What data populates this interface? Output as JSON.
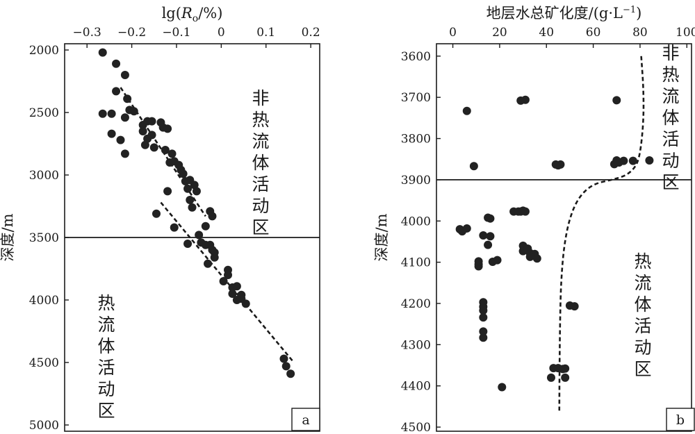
{
  "chart_data": [
    {
      "type": "scatter",
      "panel_label": "a",
      "xlabel_parts": {
        "pre": "lg(",
        "var": "R",
        "sub": "o",
        "post": "/%)"
      },
      "ylabel": "深度/m",
      "xlim": [
        -0.35,
        0.22
      ],
      "ylim": [
        5050,
        1950
      ],
      "x_axis_position": "top",
      "y_inverted": true,
      "x_ticks": [
        -0.3,
        -0.2,
        -0.1,
        0,
        0.1,
        0.2
      ],
      "x_tick_labels": [
        "−0.3",
        "−0.2",
        "−0.1",
        "0",
        "0.1",
        "0.2"
      ],
      "y_ticks": [
        2000,
        2500,
        3000,
        3500,
        4000,
        4500,
        5000
      ],
      "y_tick_labels": [
        "2000",
        "2500",
        "3000",
        "3500",
        "4000",
        "4500",
        "5000"
      ],
      "grid": false,
      "boundary_depth": 3500,
      "zone_upper_label": "非热流体活动区",
      "zone_lower_label": "热流体活动区",
      "trend_lines": [
        {
          "style": "dashed",
          "points": [
            [
              -0.225,
              2300
            ],
            [
              -0.035,
              3330
            ]
          ]
        },
        {
          "style": "dashed",
          "points": [
            [
              -0.135,
              3220
            ],
            [
              0.16,
              4490
            ]
          ]
        }
      ],
      "points": [
        [
          -0.265,
          2020
        ],
        [
          -0.235,
          2110
        ],
        [
          -0.215,
          2200
        ],
        [
          -0.235,
          2330
        ],
        [
          -0.21,
          2390
        ],
        [
          -0.265,
          2510
        ],
        [
          -0.245,
          2510
        ],
        [
          -0.205,
          2480
        ],
        [
          -0.195,
          2490
        ],
        [
          -0.215,
          2540
        ],
        [
          -0.245,
          2670
        ],
        [
          -0.225,
          2720
        ],
        [
          -0.215,
          2830
        ],
        [
          -0.175,
          2600
        ],
        [
          -0.165,
          2570
        ],
        [
          -0.155,
          2570
        ],
        [
          -0.175,
          2650
        ],
        [
          -0.155,
          2680
        ],
        [
          -0.135,
          2580
        ],
        [
          -0.13,
          2620
        ],
        [
          -0.12,
          2630
        ],
        [
          -0.165,
          2710
        ],
        [
          -0.17,
          2760
        ],
        [
          -0.15,
          2780
        ],
        [
          -0.125,
          2800
        ],
        [
          -0.11,
          2830
        ],
        [
          -0.115,
          2900
        ],
        [
          -0.105,
          2890
        ],
        [
          -0.095,
          2920
        ],
        [
          -0.09,
          2960
        ],
        [
          -0.085,
          2990
        ],
        [
          -0.08,
          3050
        ],
        [
          -0.07,
          3040
        ],
        [
          -0.06,
          3080
        ],
        [
          -0.055,
          3130
        ],
        [
          -0.075,
          3110
        ],
        [
          -0.07,
          3200
        ],
        [
          -0.065,
          3260
        ],
        [
          -0.12,
          3130
        ],
        [
          -0.145,
          3310
        ],
        [
          -0.025,
          3290
        ],
        [
          -0.02,
          3330
        ],
        [
          -0.035,
          3410
        ],
        [
          -0.05,
          3480
        ],
        [
          -0.045,
          3540
        ],
        [
          -0.035,
          3560
        ],
        [
          -0.025,
          3560
        ],
        [
          -0.02,
          3600
        ],
        [
          -0.015,
          3620
        ],
        [
          -0.015,
          3660
        ],
        [
          -0.105,
          3420
        ],
        [
          -0.075,
          3550
        ],
        [
          -0.03,
          3710
        ],
        [
          0.015,
          3760
        ],
        [
          0.015,
          3800
        ],
        [
          0.005,
          3850
        ],
        [
          0.025,
          3900
        ],
        [
          0.035,
          3890
        ],
        [
          0.025,
          3950
        ],
        [
          0.045,
          3960
        ],
        [
          0.045,
          3990
        ],
        [
          0.035,
          4000
        ],
        [
          0.055,
          4030
        ],
        [
          0.14,
          4470
        ],
        [
          0.145,
          4530
        ],
        [
          0.155,
          4590
        ]
      ]
    },
    {
      "type": "scatter",
      "panel_label": "b",
      "xlabel": "地层水总矿化度/(g·L",
      "xlabel_sup": "−1",
      "xlabel_close": ")",
      "ylabel": "深度/m",
      "xlim": [
        -7,
        102
      ],
      "ylim": [
        4510,
        3570
      ],
      "x_axis_position": "top",
      "y_inverted": true,
      "x_ticks": [
        0,
        20,
        40,
        60,
        80,
        100
      ],
      "x_tick_labels": [
        "0",
        "20",
        "40",
        "60",
        "80",
        "100"
      ],
      "y_ticks": [
        3600,
        3700,
        3800,
        3900,
        4000,
        4100,
        4200,
        4300,
        4400,
        4500
      ],
      "y_tick_labels": [
        "3600",
        "3700",
        "3800",
        "3900",
        "4000",
        "4100",
        "4200",
        "4300",
        "4400",
        "4500"
      ],
      "grid": false,
      "boundary_depth": 3900,
      "zone_upper_label": "非热流体活动区",
      "zone_lower_label": "热流体活动区",
      "trend_curve": [
        [
          80.5,
          3600
        ],
        [
          81.5,
          3680
        ],
        [
          81.5,
          3760
        ],
        [
          80.0,
          3840
        ],
        [
          78.0,
          3870
        ],
        [
          74.0,
          3890
        ],
        [
          68.0,
          3900
        ],
        [
          60.0,
          3910
        ],
        [
          54.0,
          3940
        ],
        [
          50.0,
          3990
        ],
        [
          47.5,
          4060
        ],
        [
          46.2,
          4150
        ],
        [
          45.8,
          4250
        ],
        [
          45.6,
          4350
        ],
        [
          45.5,
          4460
        ]
      ],
      "points": [
        [
          6,
          3733
        ],
        [
          9,
          3867
        ],
        [
          29,
          3708
        ],
        [
          31,
          3706
        ],
        [
          70,
          3707
        ],
        [
          44,
          3863
        ],
        [
          45,
          3865
        ],
        [
          46,
          3863
        ],
        [
          69,
          3862
        ],
        [
          70,
          3853
        ],
        [
          71,
          3858
        ],
        [
          73,
          3854
        ],
        [
          77,
          3854
        ],
        [
          84,
          3853
        ],
        [
          3,
          4020
        ],
        [
          4,
          4025
        ],
        [
          6,
          4018
        ],
        [
          11,
          4098
        ],
        [
          11,
          4105
        ],
        [
          11,
          4110
        ],
        [
          13,
          4035
        ],
        [
          15,
          4058
        ],
        [
          16,
          4037
        ],
        [
          15,
          3992
        ],
        [
          16,
          3994
        ],
        [
          17,
          4099
        ],
        [
          19,
          4095
        ],
        [
          26,
          3977
        ],
        [
          28,
          3977
        ],
        [
          29,
          3977
        ],
        [
          30,
          3975
        ],
        [
          31,
          3977
        ],
        [
          30,
          4060
        ],
        [
          30,
          4073
        ],
        [
          32,
          4067
        ],
        [
          33,
          4078
        ],
        [
          35,
          4080
        ],
        [
          36,
          4091
        ],
        [
          33,
          4087
        ],
        [
          13,
          4197
        ],
        [
          13,
          4208
        ],
        [
          13,
          4217
        ],
        [
          13,
          4234
        ],
        [
          13,
          4268
        ],
        [
          13,
          4283
        ],
        [
          50,
          4205
        ],
        [
          52,
          4207
        ],
        [
          43,
          4357
        ],
        [
          45,
          4357
        ],
        [
          47,
          4359
        ],
        [
          48,
          4358
        ],
        [
          42,
          4380
        ],
        [
          48,
          4380
        ],
        [
          21,
          4403
        ]
      ]
    }
  ]
}
